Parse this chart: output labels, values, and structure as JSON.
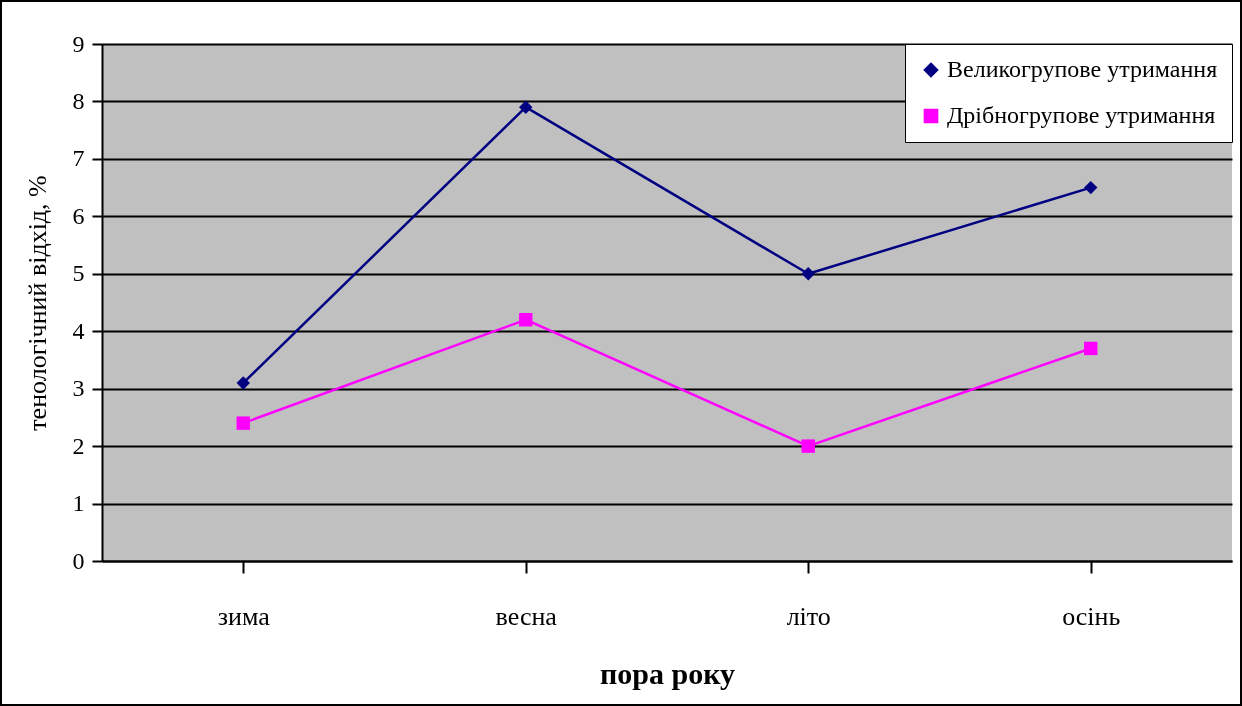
{
  "chart_data": {
    "type": "line",
    "xlabel": "пора року",
    "ylabel": "тенологічний відхід, %",
    "categories": [
      "зима",
      "весна",
      "літо",
      "осінь"
    ],
    "series": [
      {
        "name": "Великогрупове утримання",
        "color": "#000080",
        "marker": "diamond",
        "values": [
          3.1,
          7.9,
          5.0,
          6.5
        ]
      },
      {
        "name": "Дрібногрупове утримання",
        "color": "#ff00ff",
        "marker": "square",
        "values": [
          2.4,
          4.2,
          2.0,
          3.7
        ]
      }
    ],
    "ylim": [
      0,
      9
    ],
    "yticks": [
      0,
      1,
      2,
      3,
      4,
      5,
      6,
      7,
      8,
      9
    ],
    "grid": "y",
    "legend": "top right",
    "line_style": "solid"
  }
}
